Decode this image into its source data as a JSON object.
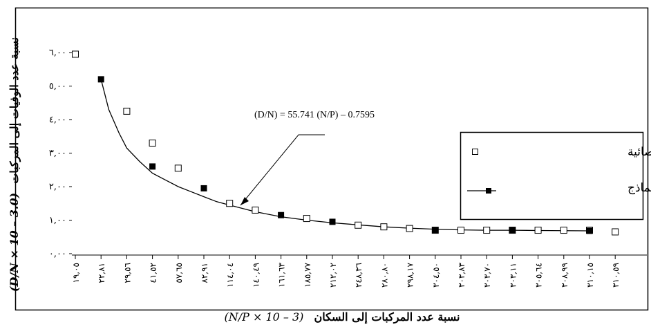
{
  "chart_data": {
    "type": "scatter",
    "equation": "(D/N) = 55.741  (N/P) – 0.7595",
    "ylabel_ar": "نسبة عدد الوفيات إلى المركبات",
    "ylabel_formula": "(D/N × 10 – 3.0)",
    "xlabel_ar": "نسبة عدد المركبات إلى السكان",
    "xlabel_formula": "(N/P × 10 – 3)",
    "y_ticks": [
      "٦,٠٠",
      "٥,٠٠",
      "٤,٠٠",
      "٣,٠٠",
      "٢,٠٠",
      "١,٠٠",
      "٠,٠٠"
    ],
    "y_tick_values": [
      6,
      5,
      4,
      3,
      2,
      1,
      0
    ],
    "ylim": [
      0,
      6
    ],
    "x_tick_labels": [
      "١٩,٠٥",
      "٢٢,٨١",
      "٢٩,٥٦",
      "٤١,٥٢",
      "٥٧,٦٥",
      "٨٢,٩١",
      "١١٤,٠٤",
      "١٤٠,٤٩",
      "١٦١,٦٣",
      "١٨٥,٧٧",
      "٢١٢,٠٢",
      "٢٤٨,٣٦",
      "٢٨٠,٨٠",
      "٢٩٨,١٧",
      "٣٠٤,٥٠",
      "٣٠٣,٨٣",
      "٣٠٣,٧٠",
      "٣٠٣,١١",
      "٣٠٥,٦٤",
      "٣٠٨,٩٩",
      "٣١٠,١٥",
      "٣١٠,٥٩"
    ],
    "series": [
      {
        "name": "البيانات الإحصائية",
        "marker": "open-square",
        "values": [
          5.95,
          null,
          4.25,
          3.3,
          2.55,
          null,
          1.5,
          1.3,
          null,
          1.05,
          null,
          0.85,
          0.8,
          0.75,
          0.7,
          0.7,
          0.7,
          0.7,
          0.7,
          0.7,
          0.7,
          0.65
        ]
      },
      {
        "name": "البيانات من النماذج",
        "marker": "filled-square",
        "values": [
          null,
          5.2,
          null,
          2.6,
          null,
          1.95,
          null,
          null,
          1.15,
          null,
          0.95,
          null,
          null,
          null,
          0.7,
          null,
          null,
          0.7,
          null,
          null,
          0.68,
          null
        ]
      }
    ],
    "fit_curve": [
      [
        1,
        5.2
      ],
      [
        1.3,
        4.3
      ],
      [
        1.7,
        3.6
      ],
      [
        2,
        3.15
      ],
      [
        2.5,
        2.75
      ],
      [
        3,
        2.4
      ],
      [
        3.5,
        2.2
      ],
      [
        4,
        2.0
      ],
      [
        4.5,
        1.85
      ],
      [
        5,
        1.7
      ],
      [
        5.5,
        1.55
      ],
      [
        6,
        1.45
      ],
      [
        7,
        1.25
      ],
      [
        8,
        1.1
      ],
      [
        9,
        1.0
      ],
      [
        10,
        0.92
      ],
      [
        11,
        0.86
      ],
      [
        12,
        0.8
      ],
      [
        13,
        0.76
      ],
      [
        14,
        0.73
      ],
      [
        15,
        0.71
      ],
      [
        16,
        0.7
      ],
      [
        17,
        0.7
      ],
      [
        18,
        0.69
      ],
      [
        20,
        0.68
      ]
    ],
    "legend_position": "right"
  }
}
